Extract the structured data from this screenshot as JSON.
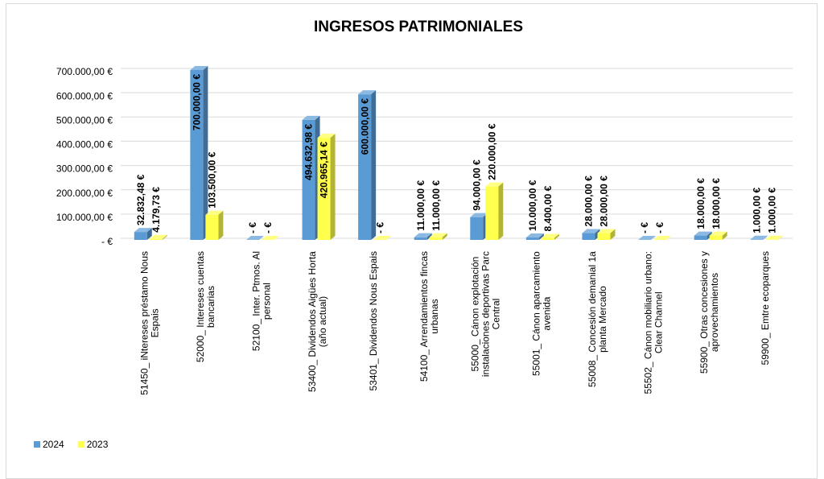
{
  "chart_data": {
    "type": "bar3d",
    "title": "INGRESOS PATRIMONIALES",
    "categories": [
      "51450_ iNtereses préstamo Nous Espais",
      "52000_ Intereses cuentas bancarias",
      "52100_ Inter. Ptmos. Al personal",
      "53400_ Dividendos Aigües Horta (año actual)",
      "53401_ Dividendos Nous Espais",
      "54100_ Arrendamientos fincas urbanas",
      "55000_ Cánon explotación instalaciones deportivas Parc Central",
      "55001_ Cánon aparcamiento avenida",
      "55008_ Concesión demanial 1a planta Mercado",
      "55502_ Cánon mobiliario urbano: Clear Channel",
      "55900_ Otras concesiones y aprovechamientos",
      "59900_ Emtre ecoparques"
    ],
    "series": [
      {
        "name": "2024",
        "color": "#5b9bd5",
        "values": [
          32832.48,
          700000,
          0,
          494632.98,
          600000,
          11000,
          94000,
          10000,
          28000,
          0,
          18000,
          1000
        ],
        "value_labels": [
          "32.832,48 €",
          "700.000,00 €",
          "-   €",
          "494.632,98 €",
          "600.000,00 €",
          "11.000,00 €",
          "94.000,00 €",
          "10.000,00 €",
          "28.000,00 €",
          "-   €",
          "18.000,00 €",
          "1.000,00 €"
        ]
      },
      {
        "name": "2023",
        "color": "#ffff4d",
        "values": [
          4179.73,
          103500,
          0,
          420965.14,
          0,
          11000,
          220000,
          8400,
          28000,
          0,
          18000,
          1000
        ],
        "value_labels": [
          "4.179,73 €",
          "103.500,00 €",
          "-   €",
          "420.965,14 €",
          "-   €",
          "11.000,00 €",
          "220.000,00 €",
          "8.400,00 €",
          "28.000,00 €",
          "-   €",
          "18.000,00 €",
          "1.000,00 €"
        ]
      }
    ],
    "ylim": [
      0,
      700000
    ],
    "yticks": [
      {
        "value": 0,
        "label": "-  €"
      },
      {
        "value": 100000,
        "label": "100.000,00 €"
      },
      {
        "value": 200000,
        "label": "200.000,00 €"
      },
      {
        "value": 300000,
        "label": "300.000,00 €"
      },
      {
        "value": 400000,
        "label": "400.000,00 €"
      },
      {
        "value": 500000,
        "label": "500.000,00 €"
      },
      {
        "value": 600000,
        "label": "600.000,00 €"
      },
      {
        "value": 700000,
        "label": "700.000,00 €"
      }
    ],
    "grid": true,
    "legend": "bottom-left"
  }
}
